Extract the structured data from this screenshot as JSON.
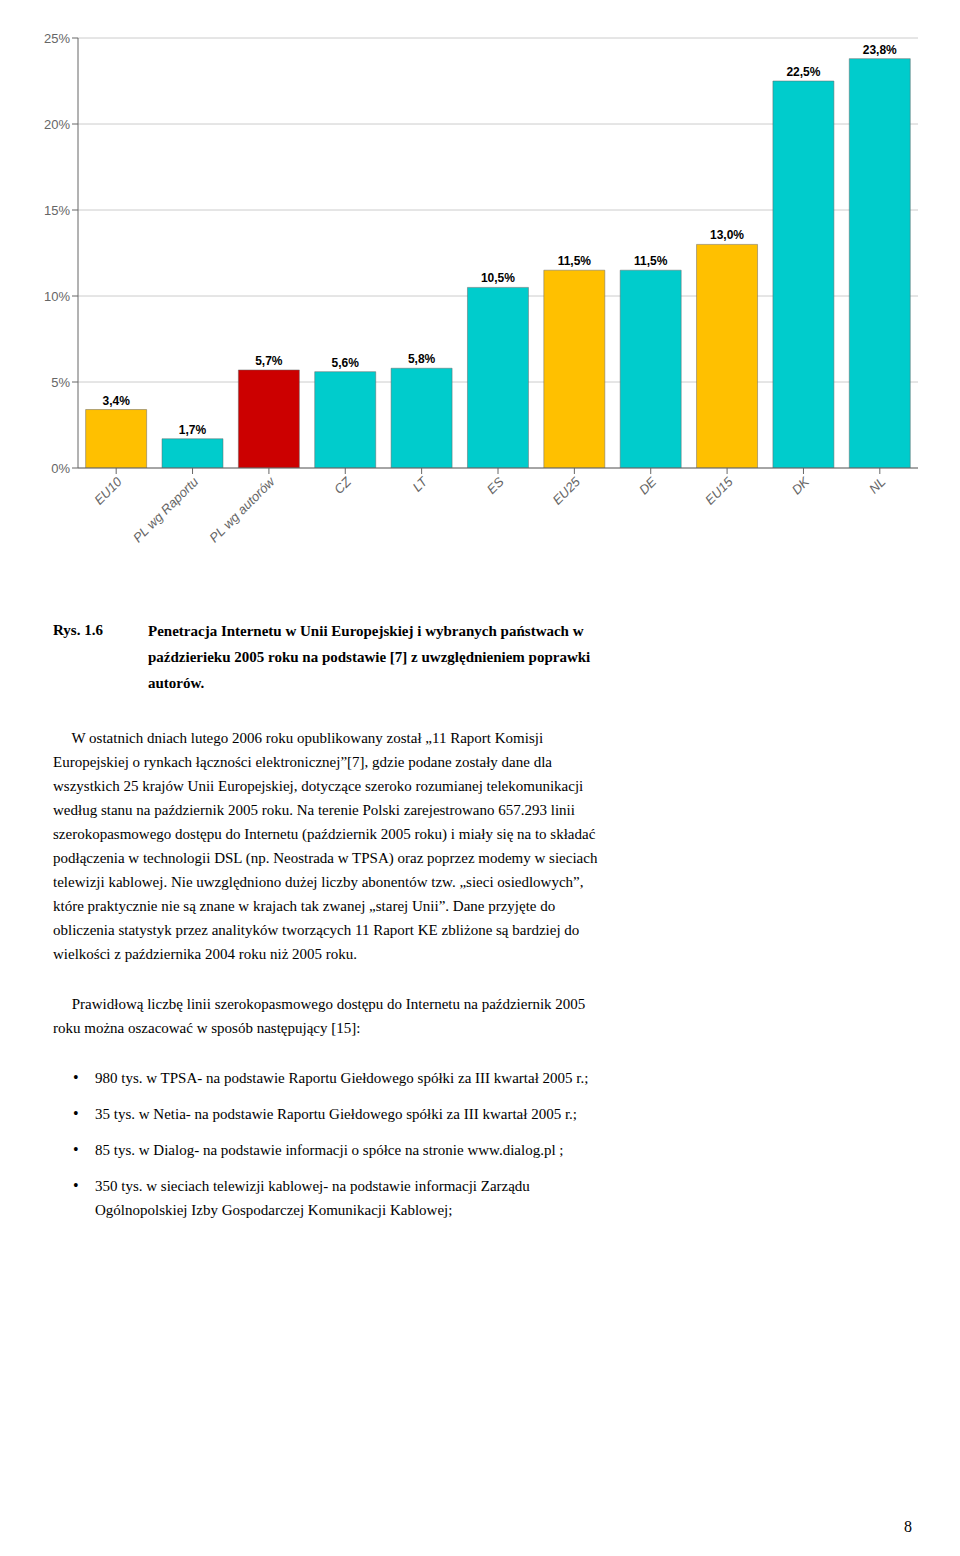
{
  "chart_data": {
    "type": "bar",
    "title": "Rys. 1.6",
    "subtitle": [
      "Penetracja Internetu w Unii Europejskiej i wybranych państwach w",
      "paździerieku 2005 roku na podstawie [7] z uwzględnieniem poprawki",
      "autorów."
    ],
    "categories": [
      "EU10",
      "PL wg Raportu",
      "PL wg autorów",
      "CZ",
      "LT",
      "ES",
      "EU25",
      "DE",
      "EU15",
      "DK",
      "NL"
    ],
    "values": [
      3.4,
      1.7,
      5.7,
      5.6,
      5.8,
      10.5,
      11.5,
      11.5,
      13.0,
      22.5,
      23.8
    ],
    "value_labels": [
      "3,4%",
      "1,7%",
      "5,7%",
      "5,6%",
      "5,8%",
      "10,5%",
      "11,5%",
      "11,5%",
      "13,0%",
      "22,5%",
      "23,8%"
    ],
    "colors": [
      "#FFC000",
      "#00CCCC",
      "#CC0000",
      "#00CCCC",
      "#00CCCC",
      "#00CCCC",
      "#FFC000",
      "#00CCCC",
      "#FFC000",
      "#00CCCC",
      "#00CCCC"
    ],
    "data_labels": true,
    "ylim": [
      0,
      25
    ],
    "yticks": [
      {
        "value": 0,
        "label": "0%"
      },
      {
        "value": 5,
        "label": "5%"
      },
      {
        "value": 10,
        "label": "10%"
      },
      {
        "value": 15,
        "label": "15%"
      },
      {
        "value": 20,
        "label": "20%"
      },
      {
        "value": 25,
        "label": "25%"
      }
    ],
    "grid": true,
    "annotations": [
      [
        "     W ostatnich dniach lutego 2006 roku opublikowany został „11 Raport Komisji",
        "Europejskiej o rynkach łączności elektronicznej”[7], gdzie podane zostały dane dla",
        "wszystkich 25 krajów Unii Europejskiej, dotyczące szeroko rozumianej telekomunikacji",
        "według stanu na październik 2005 roku. Na terenie Polski zarejestrowano 657.293 linii",
        "szerokopasmowego dostępu do Internetu (październik 2005 roku) i miały się na to składać",
        "podłączenia w technologii DSL (np. Neostrada w TPSA) oraz poprzez modemy w sieciach",
        "telewizji kablowej. Nie uwzględniono dużej liczby abonentów tzw. „sieci osiedlowych”,",
        "które praktycznie nie są znane w krajach tak zwanej „starej Unii”. Dane przyjęte do",
        "obliczenia statystyk przez analityków tworzących 11 Raport KE zbliżone są bardziej do",
        "wielkości z października 2004 roku niż 2005 roku."
      ],
      [
        "     Prawidłową liczbę linii szerokopasmowego dostępu do Internetu na październik 2005",
        "roku można oszacować w sposób następujący [15]:"
      ],
      [
        "• 980 tys. w TPSA- na podstawie Raportu Giełdowego spółki za III kwartał 2005 r.;"
      ],
      [
        "• 35 tys. w Netia- na podstawie Raportu Giełdowego spółki za III kwartał 2005 r.;"
      ],
      [
        "• 85 tys. w Dialog- na podstawie informacji o spółce na stronie www.dialog.pl ;"
      ],
      [
        "• 350 tys. w sieciach telewizji kablowej- na podstawie informacji Zarządu",
        "Ogólnopolskiej Izby Gospodarczej Komunikacji Kablowej;"
      ],
      [
        "8"
      ]
    ]
  }
}
